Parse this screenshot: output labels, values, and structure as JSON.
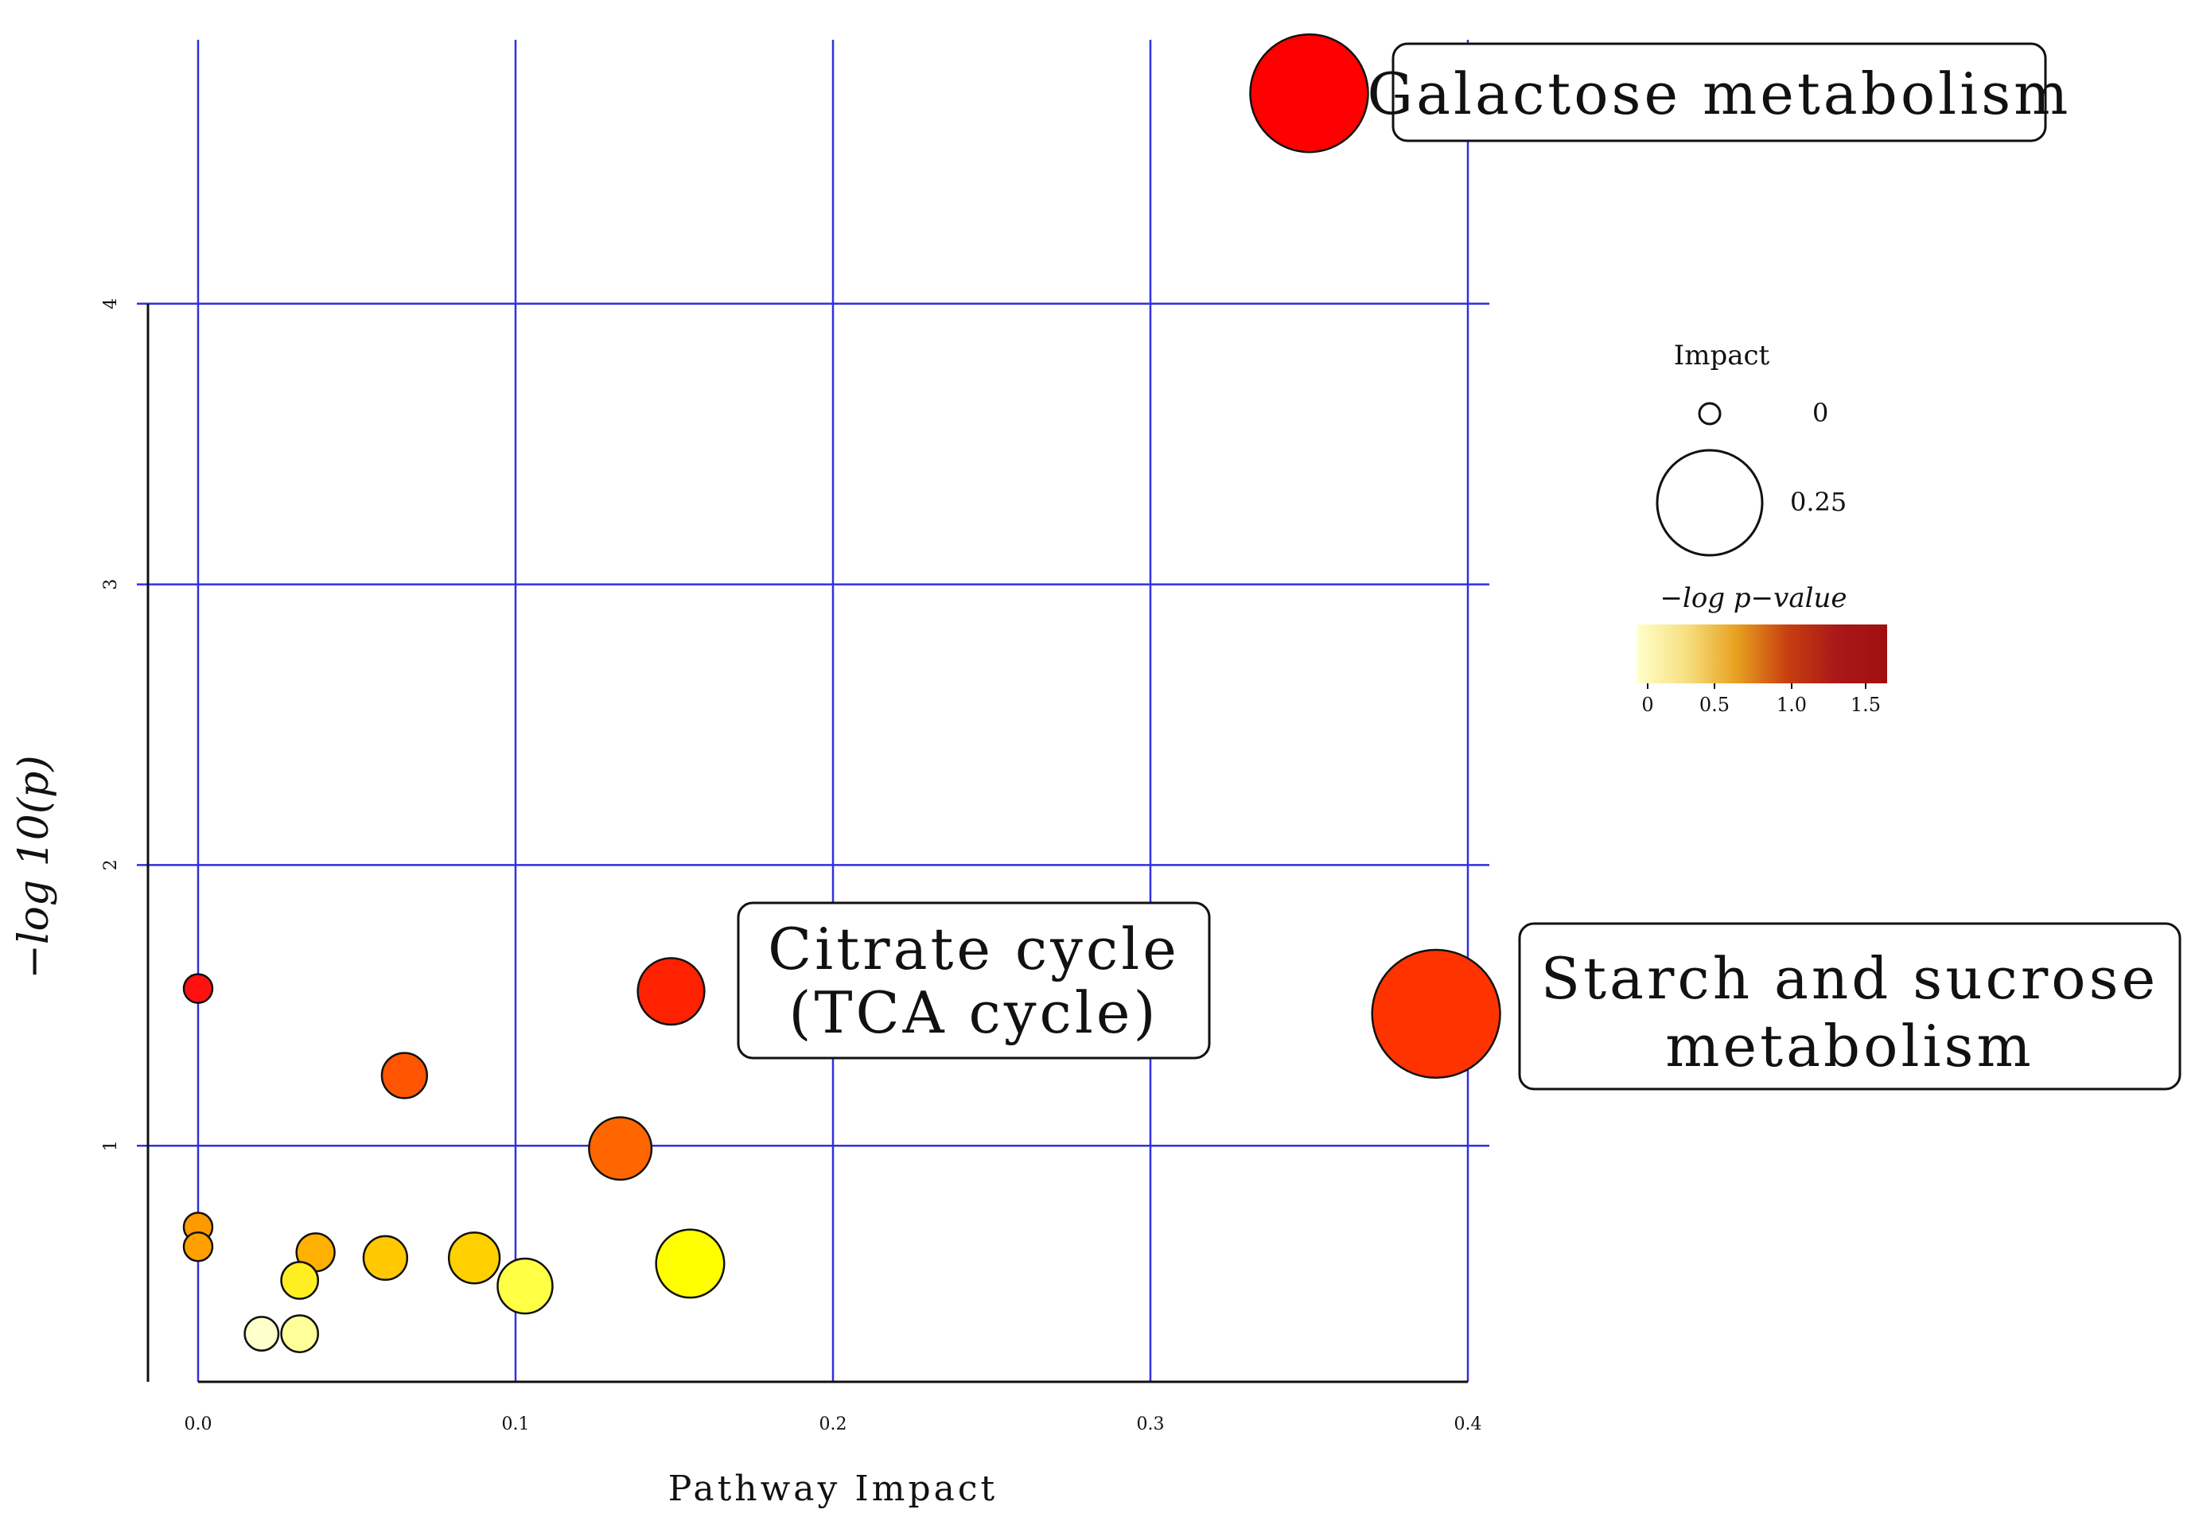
{
  "chart_data": {
    "type": "scatter",
    "xlabel": "Pathway Impact",
    "ylabel": "−log 10(p)",
    "xlim": [
      0.0,
      0.4
    ],
    "ylim": [
      0.15,
      4.9
    ],
    "x_ticks": [
      "0.0",
      "0.1",
      "0.2",
      "0.3",
      "0.4"
    ],
    "y_ticks": [
      "1",
      "2",
      "3",
      "4"
    ],
    "grid": true,
    "points": [
      {
        "x": 0.35,
        "y": 4.75,
        "impact": 0.35,
        "color": "#ff0000",
        "label": "Galactose metabolism"
      },
      {
        "x": 0.39,
        "y": 1.47,
        "impact": 0.39,
        "color": "#ff3300",
        "label": "Starch and sucrose metabolism"
      },
      {
        "x": 0.149,
        "y": 1.55,
        "impact": 0.149,
        "color": "#ff2200",
        "label": "Citrate cycle (TCA cycle)"
      },
      {
        "x": 0.0,
        "y": 1.56,
        "impact": 0.0,
        "color": "#ff1111"
      },
      {
        "x": 0.065,
        "y": 1.25,
        "impact": 0.065,
        "color": "#ff5500"
      },
      {
        "x": 0.133,
        "y": 0.99,
        "impact": 0.133,
        "color": "#ff6600"
      },
      {
        "x": 0.0,
        "y": 0.71,
        "impact": 0.0,
        "color": "#ff9900"
      },
      {
        "x": 0.0,
        "y": 0.64,
        "impact": 0.0,
        "color": "#ffa000"
      },
      {
        "x": 0.037,
        "y": 0.62,
        "impact": 0.037,
        "color": "#ffb000"
      },
      {
        "x": 0.059,
        "y": 0.6,
        "impact": 0.059,
        "color": "#ffc800"
      },
      {
        "x": 0.087,
        "y": 0.6,
        "impact": 0.087,
        "color": "#ffd000"
      },
      {
        "x": 0.155,
        "y": 0.58,
        "impact": 0.155,
        "color": "#ffff00"
      },
      {
        "x": 0.032,
        "y": 0.52,
        "impact": 0.032,
        "color": "#ffee22"
      },
      {
        "x": 0.103,
        "y": 0.5,
        "impact": 0.103,
        "color": "#ffff44"
      },
      {
        "x": 0.02,
        "y": 0.33,
        "impact": 0.02,
        "color": "#ffffcc"
      },
      {
        "x": 0.032,
        "y": 0.33,
        "impact": 0.032,
        "color": "#ffff99"
      }
    ],
    "annotations": [
      {
        "lines": [
          "Galactose metabolism"
        ],
        "target": 0
      },
      {
        "lines": [
          "Starch and sucrose",
          "metabolism"
        ],
        "target": 1
      },
      {
        "lines": [
          "Citrate cycle",
          "(TCA cycle)"
        ],
        "target": 2
      }
    ],
    "legend": {
      "size_title": "Impact",
      "size_entries": [
        {
          "label": "0",
          "impact": 0.0
        },
        {
          "label": "0.25",
          "impact": 0.25
        }
      ],
      "color_title": "−log p−value",
      "color_ticks": [
        "0",
        "0.5",
        "1.0",
        "1.5"
      ],
      "color_stops": [
        "#ffffcc",
        "#f7e080",
        "#e8a020",
        "#c84010",
        "#a81818",
        "#a01010"
      ]
    }
  }
}
